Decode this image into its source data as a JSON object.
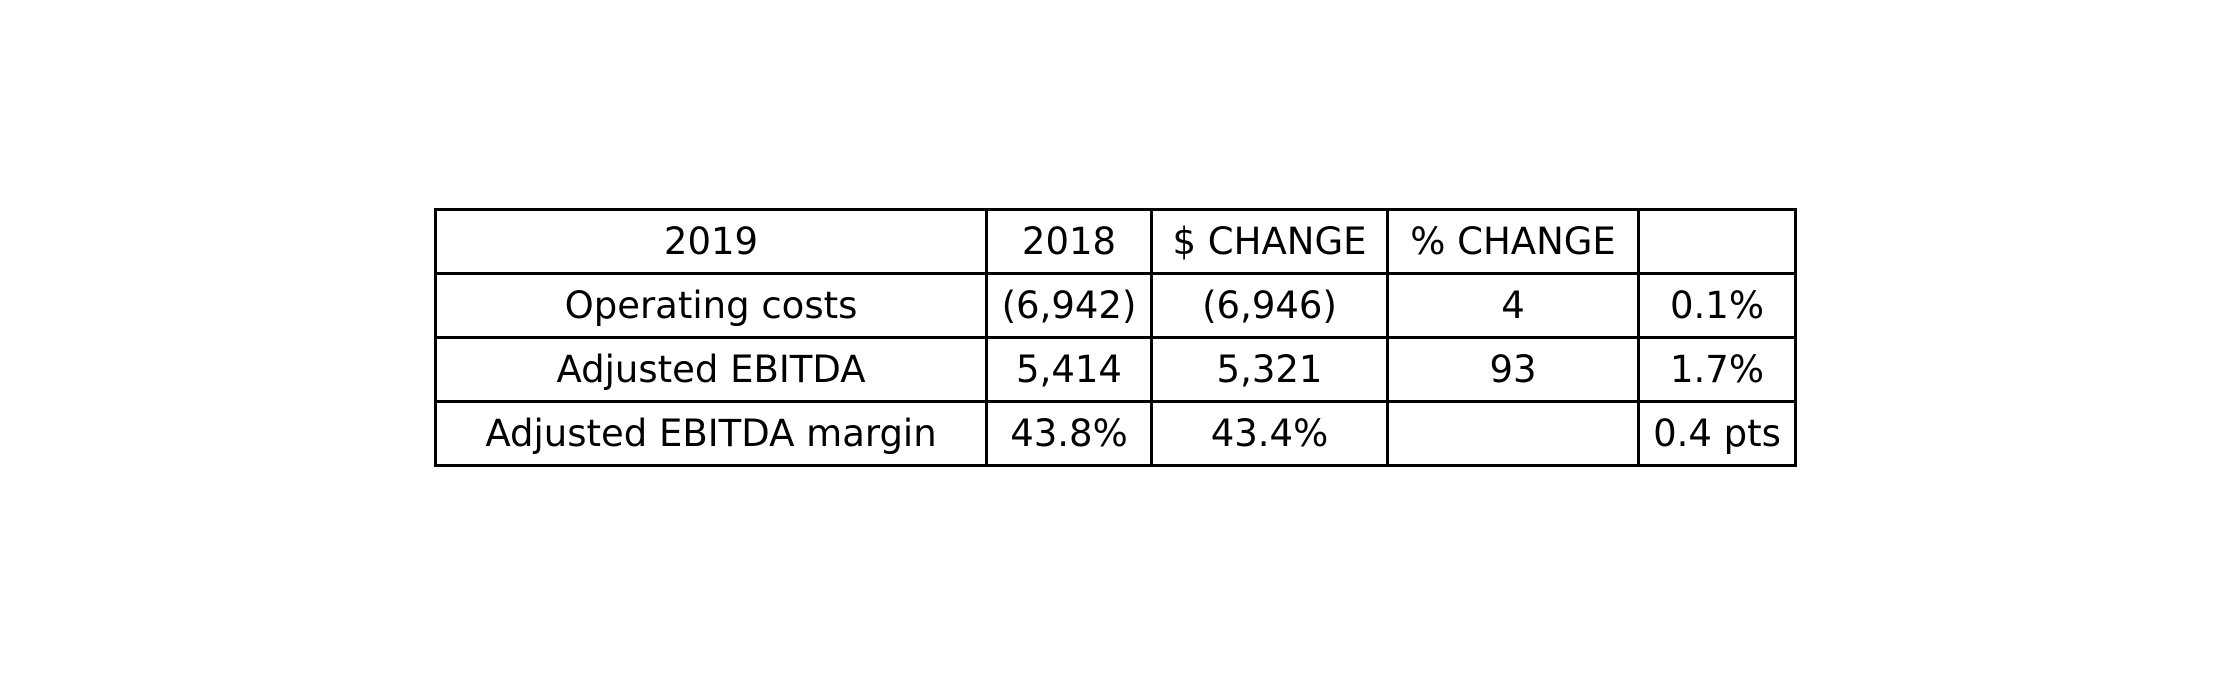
{
  "table": {
    "header": [
      "2019",
      "2018",
      "$ CHANGE",
      "% CHANGE",
      ""
    ],
    "rows": [
      [
        "Operating costs",
        "(6,942)",
        "(6,946)",
        "4",
        "0.1%"
      ],
      [
        "Adjusted EBITDA",
        "5,414",
        "5,321",
        "93",
        "1.7%"
      ],
      [
        "Adjusted EBITDA margin",
        "43.8%",
        "43.4%",
        "",
        "0.4 pts"
      ]
    ]
  }
}
